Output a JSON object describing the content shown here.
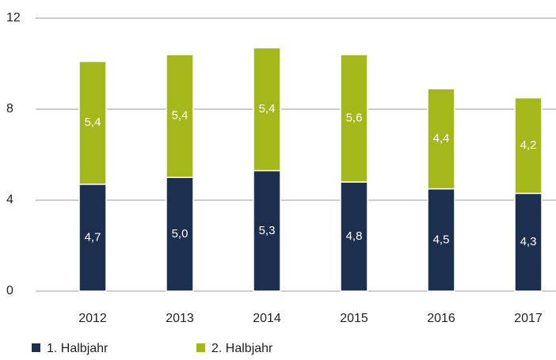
{
  "chart_data": {
    "type": "stacked-bar",
    "categories": [
      "2012",
      "2013",
      "2014",
      "2015",
      "2016",
      "2017"
    ],
    "series": [
      {
        "name": "1. Halbjahr",
        "color": "#1c2f4f",
        "values": [
          4.7,
          5.0,
          5.3,
          4.8,
          4.5,
          4.3
        ],
        "value_labels": [
          "4,7",
          "5,0",
          "5,3",
          "4,8",
          "4,5",
          "4,3"
        ]
      },
      {
        "name": "2. Halbjahr",
        "color": "#a5b81b",
        "values": [
          5.4,
          5.4,
          5.4,
          5.6,
          4.4,
          4.2
        ],
        "value_labels": [
          "5,4",
          "5,4",
          "5,4",
          "5,6",
          "4,4",
          "4,2"
        ]
      }
    ],
    "ylim": [
      0,
      12
    ],
    "yticks": [
      0,
      4,
      8,
      12
    ],
    "grid": true,
    "legend": "bottom-left"
  }
}
